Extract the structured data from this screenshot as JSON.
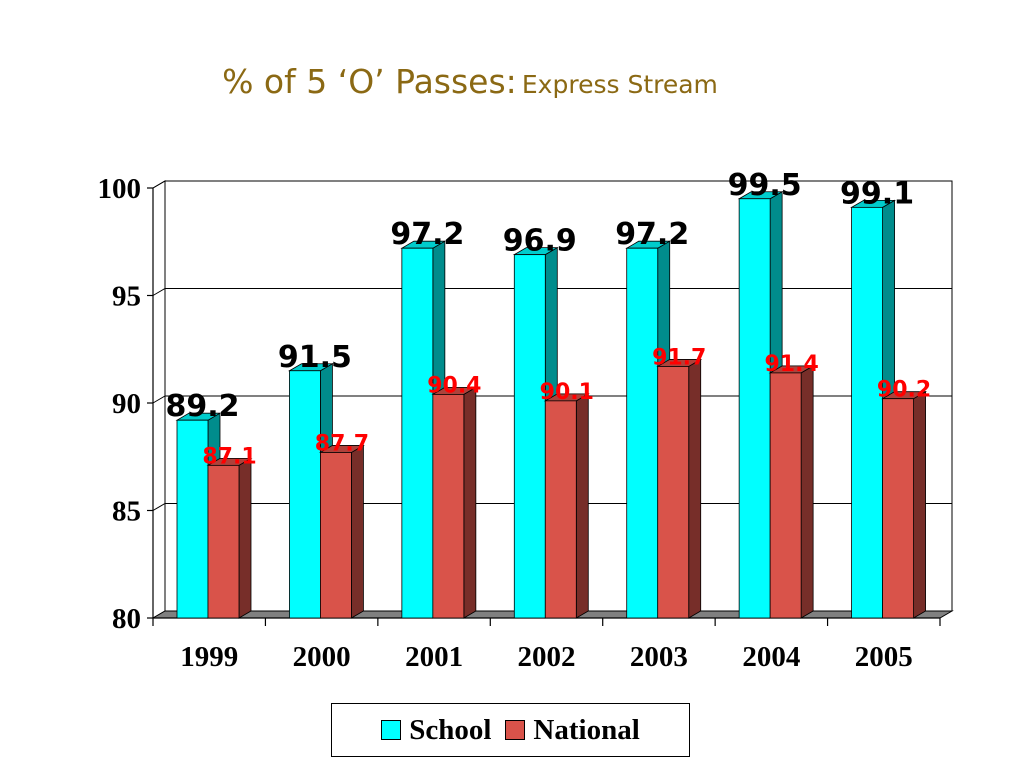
{
  "title": {
    "main": "% of 5 ‘O’ Passes:",
    "sub": "Express Stream"
  },
  "chart_data": {
    "type": "bar",
    "categories": [
      "1999",
      "2000",
      "2001",
      "2002",
      "2003",
      "2004",
      "2005"
    ],
    "series": [
      {
        "name": "School",
        "values": [
          89.2,
          91.5,
          97.2,
          96.9,
          97.2,
          99.5,
          99.1
        ],
        "color": "#00FFFF",
        "label_color": "#000000"
      },
      {
        "name": "National",
        "values": [
          87.1,
          87.7,
          90.4,
          90.1,
          91.7,
          91.4,
          90.2
        ],
        "color": "#D9534A",
        "label_color": "#FF0000"
      }
    ],
    "ylim": [
      80,
      100
    ],
    "yticks": [
      "80",
      "85",
      "90",
      "95",
      "100"
    ],
    "grid": true,
    "legend": "bottom",
    "style": "3d"
  }
}
